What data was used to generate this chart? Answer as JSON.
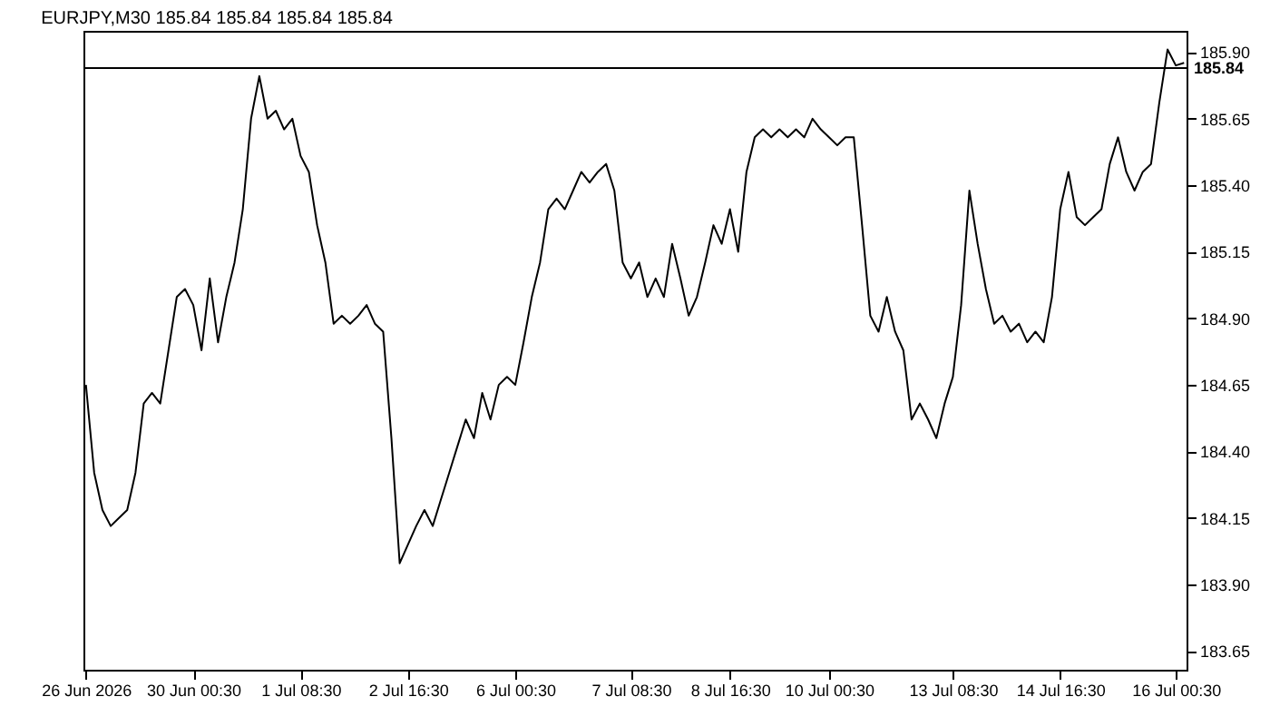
{
  "chart_data": {
    "type": "line",
    "title": "EURJPY,M30  185.84 185.84 185.84 185.84",
    "categories": [
      "26 Jun 2026",
      null,
      null,
      null,
      null,
      null,
      null,
      null,
      null,
      null,
      null,
      null,
      null,
      "30 Jun 00:30",
      null,
      null,
      null,
      null,
      null,
      null,
      null,
      null,
      null,
      null,
      null,
      null,
      "1 Jul 08:30",
      null,
      null,
      null,
      null,
      null,
      null,
      null,
      null,
      null,
      null,
      null,
      null,
      "2 Jul 16:30",
      null,
      null,
      null,
      null,
      null,
      null,
      null,
      null,
      null,
      null,
      null,
      null,
      "6 Jul 00:30",
      null,
      null,
      null,
      null,
      null,
      null,
      null,
      null,
      null,
      null,
      null,
      null,
      null,
      "7 Jul 08:30",
      null,
      null,
      null,
      null,
      null,
      null,
      null,
      null,
      null,
      null,
      null,
      "8 Jul 16:30",
      null,
      null,
      null,
      null,
      null,
      null,
      null,
      null,
      null,
      null,
      null,
      "10 Jul 00:30",
      null,
      null,
      null,
      null,
      null,
      null,
      null,
      null,
      null,
      null,
      null,
      null,
      null,
      null,
      "13 Jul 08:30",
      null,
      null,
      null,
      null,
      null,
      null,
      null,
      null,
      null,
      null,
      null,
      null,
      "14 Jul 16:30",
      null,
      null,
      null,
      null,
      null,
      null,
      null,
      null,
      null,
      null,
      null,
      null,
      null,
      "16 Jul 00:30",
      null
    ],
    "series": [
      {
        "color": "#000000",
        "values": [
          184.65,
          184.32,
          184.18,
          184.12,
          184.15,
          184.18,
          184.32,
          184.58,
          184.62,
          184.58,
          184.78,
          184.98,
          185.01,
          184.95,
          184.78,
          185.05,
          184.81,
          184.98,
          185.11,
          185.31,
          185.65,
          185.81,
          185.65,
          185.68,
          185.61,
          185.65,
          185.51,
          185.45,
          185.25,
          185.11,
          184.88,
          184.91,
          184.88,
          184.91,
          184.95,
          184.88,
          184.85,
          184.45,
          183.98,
          184.05,
          184.12,
          184.18,
          184.12,
          184.22,
          184.32,
          184.42,
          184.52,
          184.45,
          184.62,
          184.52,
          184.65,
          184.68,
          184.65,
          184.81,
          184.98,
          185.11,
          185.31,
          185.35,
          185.31,
          185.38,
          185.45,
          185.41,
          185.45,
          185.48,
          185.38,
          185.11,
          185.05,
          185.11,
          184.98,
          185.05,
          184.98,
          185.18,
          185.05,
          184.91,
          184.98,
          185.11,
          185.25,
          185.18,
          185.31,
          185.15,
          185.45,
          185.58,
          185.61,
          185.58,
          185.61,
          185.58,
          185.61,
          185.58,
          185.65,
          185.61,
          185.58,
          185.55,
          185.58,
          185.58,
          185.25,
          184.91,
          184.85,
          184.98,
          184.85,
          184.78,
          184.52,
          184.58,
          184.52,
          184.45,
          184.58,
          184.68,
          184.95,
          185.38,
          185.18,
          185.01,
          184.88,
          184.91,
          184.85,
          184.88,
          184.81,
          184.85,
          184.81,
          184.98,
          185.31,
          185.45,
          185.28,
          185.25,
          185.28,
          185.31,
          185.48,
          185.58,
          185.45,
          185.38,
          185.45,
          185.48,
          185.71,
          185.91,
          185.85,
          185.86
        ]
      }
    ],
    "ylim": [
      183.58,
      185.98
    ],
    "yticks": [
      183.65,
      {
        "value": 183.9,
        "label": "183.90"
      },
      184.15,
      {
        "value": 184.4,
        "label": "184.40"
      },
      184.65,
      {
        "value": 184.9,
        "label": "184.90"
      },
      185.15,
      {
        "value": 185.4,
        "label": "185.40"
      },
      185.65,
      {
        "value": 185.9,
        "label": "185.90"
      }
    ],
    "ref_lines": [
      {
        "axis": "y",
        "value": 185.84,
        "label": "185.84",
        "color": "#000000"
      }
    ],
    "grid": false,
    "line_style": "solid",
    "marker": "none"
  }
}
